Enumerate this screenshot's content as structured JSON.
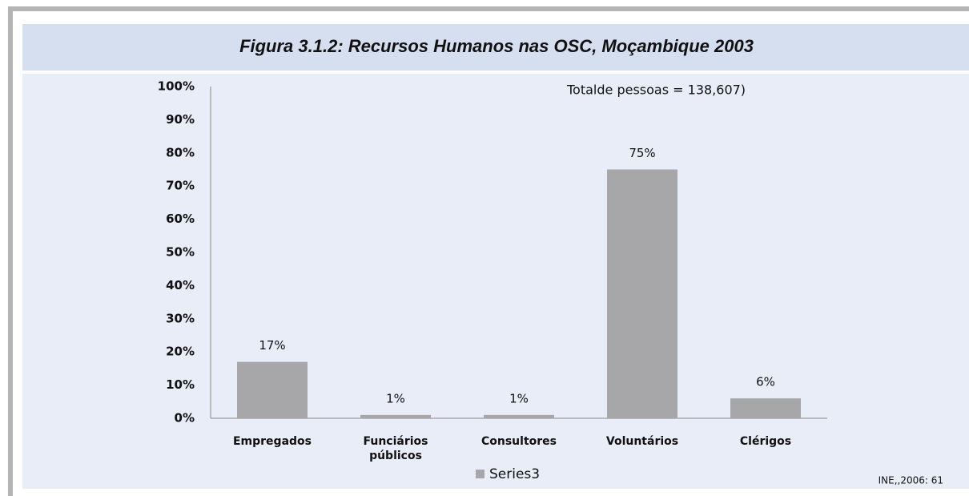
{
  "chart_data": {
    "type": "bar",
    "title": "Figura 3.1.2: Recursos Humanos nas OSC, Moçambique 2003",
    "annotation": "Totalde pessoas = 138,607)",
    "source": "INE,,2006: 61",
    "categories": [
      "Empregados",
      "Funciários públicos",
      "Consultores",
      "Voluntários",
      "Clérigos"
    ],
    "series": [
      {
        "name": "Series3",
        "color": "#a7a7a9",
        "values": [
          17,
          1,
          1,
          75,
          6
        ],
        "value_labels": [
          "17%",
          "1%",
          "1%",
          "75%",
          "6%"
        ]
      }
    ],
    "ylim": [
      0,
      100
    ],
    "yticks": [
      {
        "value": 0,
        "label": "0%"
      },
      {
        "value": 10,
        "label": "10%"
      },
      {
        "value": 20,
        "label": "20%"
      },
      {
        "value": 30,
        "label": "30%"
      },
      {
        "value": 40,
        "label": "40%"
      },
      {
        "value": 50,
        "label": "50%"
      },
      {
        "value": 60,
        "label": "60%"
      },
      {
        "value": 70,
        "label": "70%"
      },
      {
        "value": 80,
        "label": "80%"
      },
      {
        "value": 90,
        "label": "90%"
      },
      {
        "value": 100,
        "label": "100%"
      }
    ],
    "grid": false,
    "legend": "bottom"
  }
}
